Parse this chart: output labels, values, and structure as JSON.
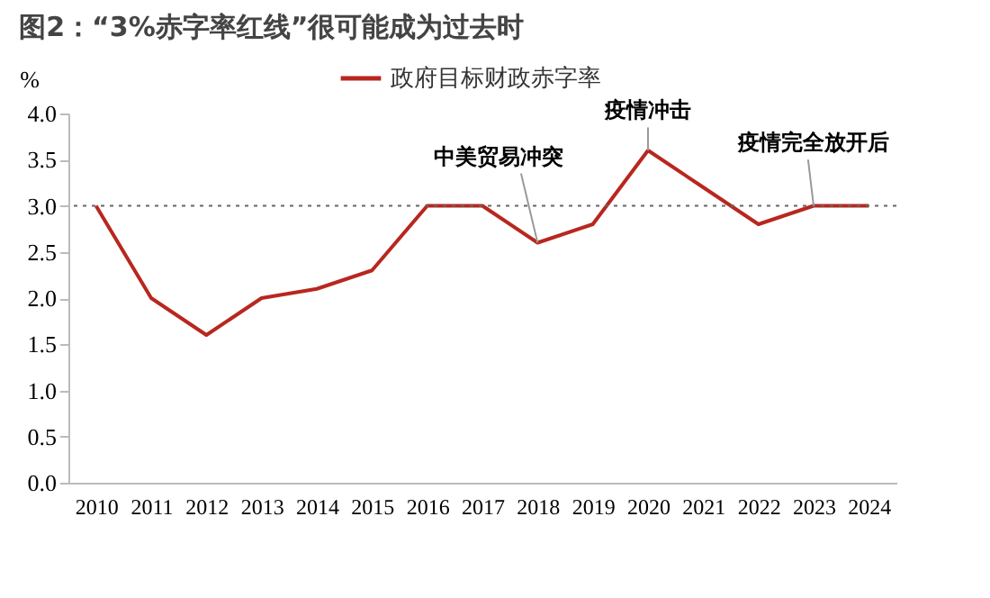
{
  "chart_data": {
    "type": "line",
    "title": "图2：“3%赤字率红线”很可能成为过去时",
    "ylabel": "%",
    "categories": [
      "2010",
      "2011",
      "2012",
      "2013",
      "2014",
      "2015",
      "2016",
      "2017",
      "2018",
      "2019",
      "2020",
      "2021",
      "2022",
      "2023",
      "2024"
    ],
    "series": [
      {
        "name": "政府目标财政赤字率",
        "color": "#b8271f",
        "values": [
          3.0,
          2.0,
          1.6,
          2.0,
          2.1,
          2.3,
          3.0,
          3.0,
          2.6,
          2.8,
          3.6,
          3.2,
          2.8,
          3.0,
          3.0
        ]
      }
    ],
    "ylim": [
      0,
      4
    ],
    "yticks": [
      {
        "value": 0,
        "label": "0.0"
      },
      {
        "value": 0.5,
        "label": "0.5"
      },
      {
        "value": 1,
        "label": "1.0"
      },
      {
        "value": 1.5,
        "label": "1.5"
      },
      {
        "value": 2,
        "label": "2.0"
      },
      {
        "value": 2.5,
        "label": "2.5"
      },
      {
        "value": 3,
        "label": "3.0"
      },
      {
        "value": 3.5,
        "label": "3.5"
      },
      {
        "value": 4,
        "label": "4.0"
      }
    ],
    "ref_lines": [
      {
        "axis": "y",
        "value": 3.0,
        "color": "#666666",
        "line_style": "dotted"
      }
    ],
    "annotations": [
      {
        "text": "中美贸易冲突",
        "x": "2018",
        "y": 2.6
      },
      {
        "text": "疫情冲击",
        "x": "2020",
        "y": 3.6
      },
      {
        "text": "疫情完全放开后",
        "x": "2023",
        "y": 3.0
      }
    ],
    "legend": "top",
    "grid": false,
    "marker": "none",
    "line_style": "solid"
  }
}
